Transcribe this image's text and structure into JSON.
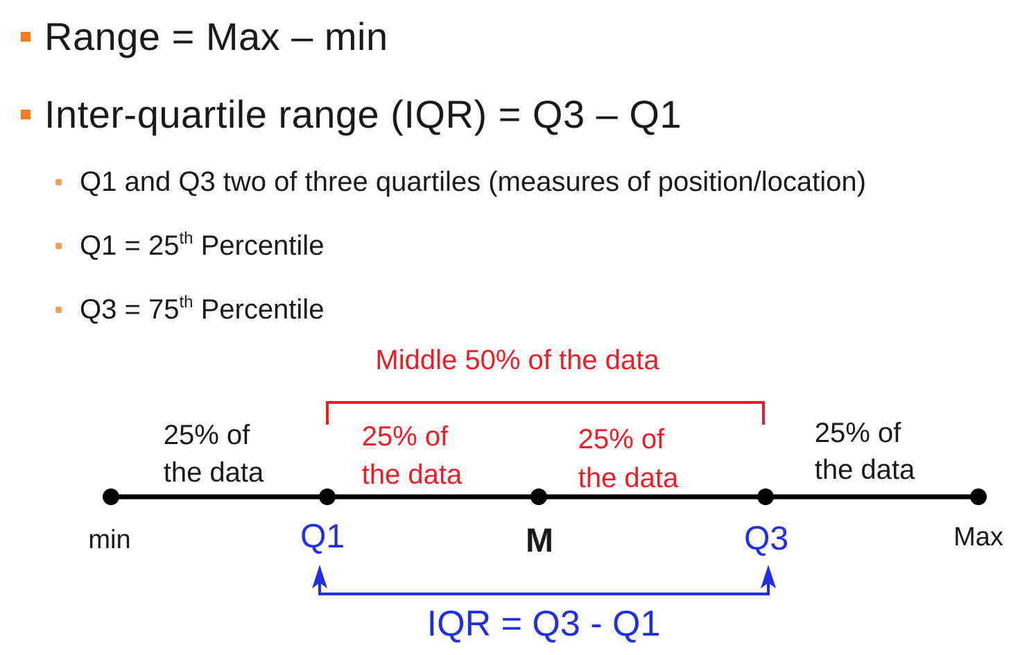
{
  "bullets": [
    {
      "text": "Range = Max – min"
    },
    {
      "text": "Inter-quartile range (IQR)  = Q3 – Q1"
    }
  ],
  "sub_bullets": [
    {
      "text": "Q1 and Q3 two of three quartiles (measures of position/location)"
    },
    {
      "pre": "Q1 = 25",
      "sup": "th",
      "post": " Percentile"
    },
    {
      "pre": "Q3 = 75",
      "sup": "th",
      "post": " Percentile"
    }
  ],
  "diagram": {
    "middle_label": "Middle 50% of the data",
    "seg1": [
      "25% of",
      "the data"
    ],
    "seg2": [
      "25% of",
      "the data"
    ],
    "seg3": [
      "25% of",
      "the data"
    ],
    "seg4": [
      "25% of",
      "the data"
    ],
    "points": {
      "min": "min",
      "q1": "Q1",
      "m": "M",
      "q3": "Q3",
      "max": "Max"
    },
    "iqr_label": "IQR = Q3 - Q1",
    "colors": {
      "black": "#000000",
      "red": "#ee1c24",
      "blue": "#1f2fe6",
      "orange": "#f47b20"
    }
  }
}
